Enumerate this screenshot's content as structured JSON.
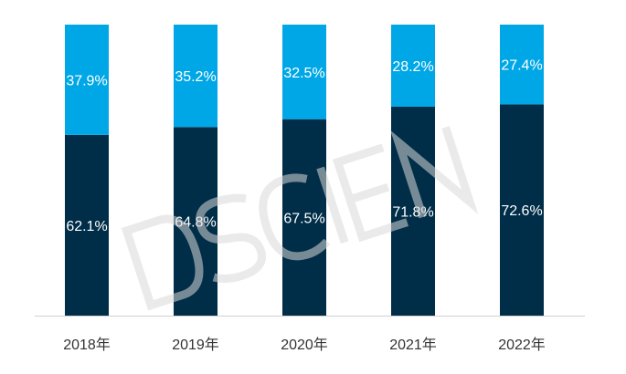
{
  "chart_data": {
    "type": "bar",
    "stacked": true,
    "percent": true,
    "categories": [
      "2018年",
      "2019年",
      "2020年",
      "2021年",
      "2022年"
    ],
    "series": [
      {
        "name": "",
        "values": [
          62.1,
          64.8,
          67.5,
          71.8,
          72.6
        ],
        "labels": [
          "62.1%",
          "64.8%",
          "67.5%",
          "71.8%",
          "72.6%"
        ],
        "color": "#002D47"
      },
      {
        "name": "",
        "values": [
          37.9,
          35.2,
          32.5,
          28.2,
          27.4
        ],
        "labels": [
          "37.9%",
          "35.2%",
          "32.5%",
          "28.2%",
          "27.4%"
        ],
        "color": "#00A7E6"
      }
    ],
    "ylim": [
      0,
      100
    ],
    "grid": false,
    "legend_position": "top-center",
    "title": "",
    "xlabel": "",
    "ylabel": ""
  },
  "watermark": {
    "text": "DSCIEN"
  },
  "colors": {
    "axis": "#d0d0d0",
    "tick_text": "#333333"
  }
}
